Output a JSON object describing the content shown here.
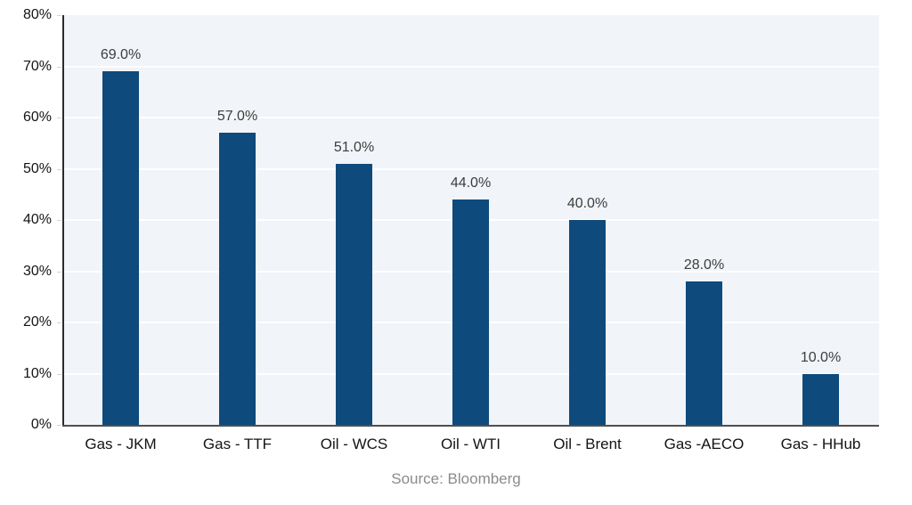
{
  "chart_data": {
    "type": "bar",
    "categories": [
      "Gas - JKM",
      "Gas - TTF",
      "Oil - WCS",
      "Oil - WTI",
      "Oil - Brent",
      "Gas -AECO",
      "Gas - HHub"
    ],
    "values": [
      69.0,
      57.0,
      51.0,
      44.0,
      40.0,
      28.0,
      10.0
    ],
    "value_labels": [
      "69.0%",
      "57.0%",
      "51.0%",
      "44.0%",
      "40.0%",
      "28.0%",
      "10.0%"
    ],
    "title": "",
    "xlabel": "",
    "ylabel": "",
    "ylim": [
      0,
      80
    ],
    "ytick_step": 10,
    "ytick_labels": [
      "0%",
      "10%",
      "20%",
      "30%",
      "40%",
      "50%",
      "60%",
      "70%",
      "80%"
    ],
    "grid": true,
    "legend": false,
    "source": "Source: Bloomberg",
    "colors": {
      "bar": "#0e4a7c",
      "plot_bg": "#f1f4f8",
      "gridline": "#ffffff",
      "left_spine": "#2b2b2b",
      "bottom_spine": "#4f4f4f",
      "tick_label": "#141414",
      "tick_mark": "#d0d5db",
      "value_label": "#3d3d3d",
      "category_label": "#141414",
      "source_text": "#8b8b8b"
    }
  }
}
